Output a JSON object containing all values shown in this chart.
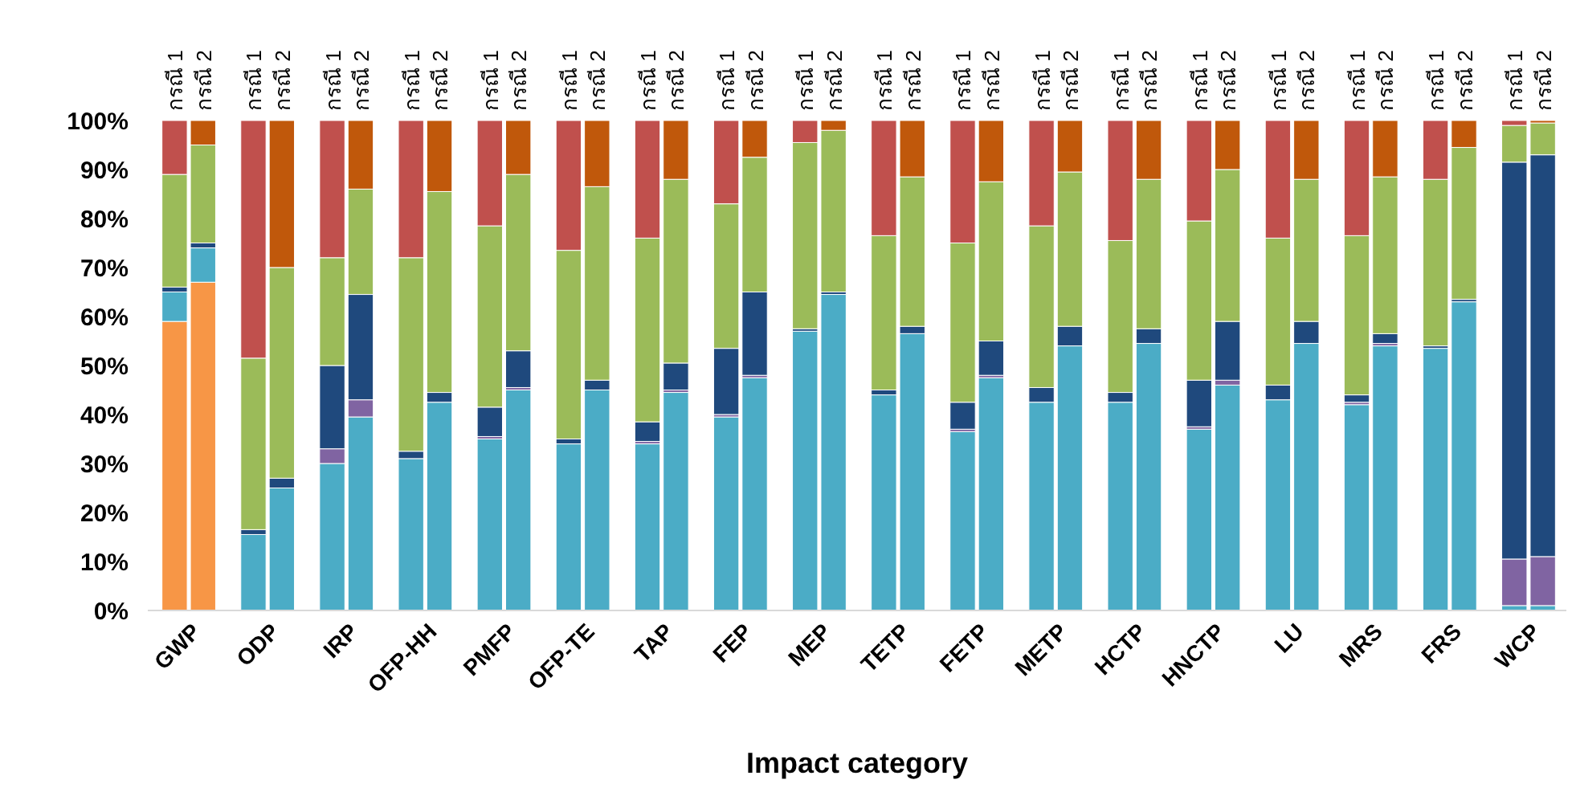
{
  "chart_data": {
    "type": "bar",
    "stacked": true,
    "xlabel": "Impact category",
    "categories": [
      "กรณี 1",
      "กรณี 2",
      "กรณี 1",
      "กรณี 2",
      "กรณี 1",
      "กรณี 2",
      "กรณี 1",
      "กรณี 2",
      "กรณี 1",
      "กรณี 2",
      "กรณี 1",
      "กรณี 2",
      "กรณี 1",
      "กรณี 2",
      "กรณี 1",
      "กรณี 2",
      "กรณี 1",
      "กรณี 2",
      "กรณี 1",
      "กรณี 2",
      "กรณี 1",
      "กรณี 2",
      "กรณี 1",
      "กรณี 2",
      "กรณี 1",
      "กรณี 2",
      "กรณี 1",
      "กรณี 2",
      "กรณี 1",
      "กรณี 2",
      "กรณี 1",
      "กรณี 2",
      "กรณี 1",
      "กรณี 2",
      "กรณี 1",
      "กรณี 2"
    ],
    "annotations": [
      "GWP",
      "ODP",
      "IRP",
      "OFP-HH",
      "PMFP",
      "OFP-TE",
      "TAP",
      "FEP",
      "MEP",
      "TETP",
      "FETP",
      "METP",
      "HCTP",
      "HNCTP",
      "LU",
      "MRS",
      "FRS",
      "WCP"
    ],
    "ylim": [
      0,
      100
    ],
    "yticks": [
      {
        "value": 0,
        "label": "0%"
      },
      {
        "value": 10,
        "label": "10%"
      },
      {
        "value": 20,
        "label": "20%"
      },
      {
        "value": 30,
        "label": "30%"
      },
      {
        "value": 40,
        "label": "40%"
      },
      {
        "value": 50,
        "label": "50%"
      },
      {
        "value": 60,
        "label": "60%"
      },
      {
        "value": 70,
        "label": "70%"
      },
      {
        "value": 80,
        "label": "80%"
      },
      {
        "value": 90,
        "label": "90%"
      },
      {
        "value": 100,
        "label": "100%"
      }
    ],
    "grid": false,
    "series": [
      {
        "color": "#f79646",
        "values": [
          59,
          67,
          null,
          null,
          null,
          null,
          null,
          null,
          null,
          null,
          null,
          null,
          null,
          null,
          null,
          null,
          null,
          null,
          null,
          null,
          null,
          null,
          null,
          null,
          null,
          null,
          null,
          null,
          null,
          null,
          null,
          null,
          null,
          null,
          null,
          null
        ]
      },
      {
        "color": "#4bacc6",
        "values": [
          6,
          7,
          15.5,
          25,
          30,
          39.5,
          31,
          42.5,
          35,
          45,
          34,
          45,
          34,
          44.5,
          39.5,
          47.5,
          57,
          64.5,
          44,
          56.5,
          36.5,
          47.5,
          42.5,
          54,
          42.5,
          54.5,
          37,
          46,
          43,
          54.5,
          42,
          54,
          53.5,
          63,
          1,
          1
        ]
      },
      {
        "color": "#8064a2",
        "values": [
          null,
          null,
          null,
          null,
          3,
          3.5,
          null,
          null,
          0.5,
          0.5,
          null,
          null,
          0.5,
          0.5,
          0.5,
          0.5,
          null,
          null,
          null,
          null,
          0.5,
          0.5,
          null,
          null,
          null,
          null,
          0.5,
          1,
          null,
          null,
          0.5,
          0.5,
          null,
          null,
          9.5,
          10
        ]
      },
      {
        "color": "#1f497d",
        "values": [
          1,
          1,
          1,
          2,
          17,
          21.5,
          1.5,
          2,
          6,
          7.5,
          1,
          2,
          4,
          5.5,
          13.5,
          17,
          0.5,
          0.5,
          1,
          1.5,
          5.5,
          7,
          3,
          4,
          2,
          3,
          9.5,
          12,
          3,
          4.5,
          1.5,
          2,
          0.5,
          0.5,
          81,
          82
        ]
      },
      {
        "color": "#9bbb59",
        "values": [
          23,
          20,
          35,
          43,
          22,
          21.5,
          39.5,
          41,
          37,
          36,
          38.5,
          39.5,
          37.5,
          37.5,
          29.5,
          27.5,
          38,
          33,
          31.5,
          30.5,
          32.5,
          32.5,
          33,
          31.5,
          31,
          30.5,
          32.5,
          31,
          30,
          29,
          32.5,
          32,
          34,
          31,
          7.5,
          6.5
        ]
      },
      {
        "color": "#c0504d",
        "values": [
          11,
          null,
          48.5,
          null,
          28,
          null,
          28,
          null,
          21.5,
          null,
          26.5,
          null,
          24,
          null,
          17,
          null,
          4.5,
          null,
          23.5,
          null,
          25,
          null,
          21.5,
          null,
          24.5,
          null,
          20.5,
          null,
          24,
          null,
          23.5,
          null,
          12,
          null,
          1,
          null
        ]
      },
      {
        "color": "#c0580b",
        "values": [
          null,
          5,
          null,
          30,
          null,
          14,
          null,
          14.5,
          null,
          11,
          null,
          13.5,
          null,
          12,
          null,
          7.5,
          null,
          2,
          null,
          11.5,
          null,
          12.5,
          null,
          10.5,
          null,
          12,
          null,
          10,
          null,
          12,
          null,
          11.5,
          null,
          5.5,
          null,
          0.5
        ]
      }
    ]
  }
}
